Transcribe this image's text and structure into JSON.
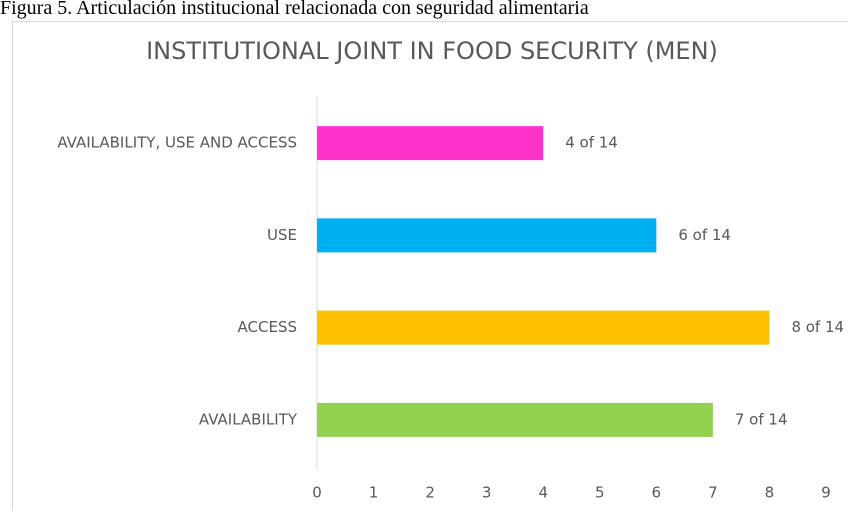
{
  "caption": "Figura 5. Articulación institucional relacionada con seguridad alimentaria",
  "chart_data": {
    "type": "barh",
    "title": "INSTITUTIONAL JOINT IN FOOD SECURITY (MEN)",
    "categories": [
      "AVAILABILITY, USE AND ACCESS",
      "USE",
      "ACCESS",
      "AVAILABILITY"
    ],
    "values": [
      4,
      6,
      8,
      7
    ],
    "value_labels": [
      "4 of 14",
      "6 of 14",
      "8 of 14",
      "7 of 14"
    ],
    "colors": [
      "#ff33cc",
      "#00b0f0",
      "#ffc000",
      "#92d050"
    ],
    "xlim": [
      0,
      9
    ],
    "xticks": [
      0,
      1,
      2,
      3,
      4,
      5,
      6,
      7,
      8,
      9
    ],
    "grid": false
  }
}
